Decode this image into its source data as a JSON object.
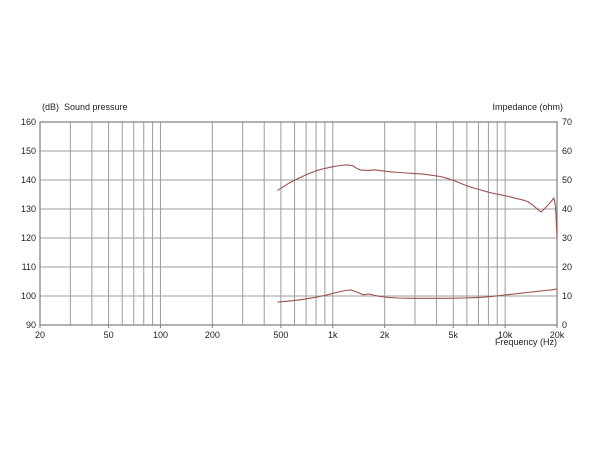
{
  "figure": {
    "background": "#ffffff"
  },
  "chart_data": {
    "type": "line",
    "title": "",
    "colors": {
      "grid": "#9c9c9c",
      "border": "#7d7d7d",
      "text": "#222222",
      "curve": "#9a544e"
    },
    "x_axis": {
      "title": "Frequency (Hz)",
      "scale": "log",
      "min": 20,
      "max": 20000,
      "tick_values": [
        20,
        50,
        100,
        200,
        500,
        1000,
        2000,
        5000,
        10000,
        20000
      ],
      "tick_labels": [
        "20",
        "50",
        "100",
        "200",
        "500",
        "1k",
        "2k",
        "5k",
        "10k",
        "20k"
      ]
    },
    "left_axis": {
      "title": "(dB)  Sound pressure",
      "min": 90,
      "max": 160,
      "ticks": [
        160,
        150,
        140,
        130,
        120,
        110,
        100,
        90
      ]
    },
    "right_axis": {
      "title": "Impedance (ohm)",
      "min": 0,
      "max": 70,
      "ticks": [
        70,
        60,
        50,
        40,
        30,
        20,
        10,
        0
      ]
    },
    "grid": true,
    "legend": "none",
    "series": [
      {
        "name": "sound-pressure-curve",
        "axis": "left",
        "unit": "dB",
        "points": [
          [
            480,
            136.5
          ],
          [
            520,
            137.8
          ],
          [
            560,
            139.0
          ],
          [
            620,
            140.3
          ],
          [
            700,
            141.8
          ],
          [
            800,
            143.2
          ],
          [
            900,
            144.0
          ],
          [
            1000,
            144.6
          ],
          [
            1100,
            145.0
          ],
          [
            1200,
            145.2
          ],
          [
            1300,
            145.0
          ],
          [
            1380,
            144.0
          ],
          [
            1450,
            143.4
          ],
          [
            1600,
            143.3
          ],
          [
            1750,
            143.5
          ],
          [
            1900,
            143.2
          ],
          [
            2100,
            142.9
          ],
          [
            2400,
            142.6
          ],
          [
            2700,
            142.4
          ],
          [
            3000,
            142.2
          ],
          [
            3400,
            142.0
          ],
          [
            3800,
            141.6
          ],
          [
            4200,
            141.2
          ],
          [
            4600,
            140.6
          ],
          [
            5000,
            139.9
          ],
          [
            5500,
            138.9
          ],
          [
            6000,
            138.0
          ],
          [
            6600,
            137.2
          ],
          [
            7200,
            136.6
          ],
          [
            8000,
            135.8
          ],
          [
            8800,
            135.2
          ],
          [
            9600,
            134.8
          ],
          [
            10500,
            134.3
          ],
          [
            11500,
            133.7
          ],
          [
            12500,
            133.2
          ],
          [
            13500,
            132.6
          ],
          [
            14500,
            131.3
          ],
          [
            15500,
            129.8
          ],
          [
            16200,
            129.0
          ],
          [
            17000,
            130.2
          ],
          [
            17800,
            131.5
          ],
          [
            18600,
            132.8
          ],
          [
            19200,
            133.8
          ],
          [
            19600,
            131.0
          ],
          [
            20000,
            120.5
          ]
        ]
      },
      {
        "name": "impedance-curve",
        "axis": "right",
        "unit": "ohm",
        "points": [
          [
            480,
            7.9
          ],
          [
            550,
            8.2
          ],
          [
            630,
            8.6
          ],
          [
            720,
            9.1
          ],
          [
            820,
            9.7
          ],
          [
            930,
            10.4
          ],
          [
            1050,
            11.2
          ],
          [
            1180,
            11.9
          ],
          [
            1280,
            12.1
          ],
          [
            1400,
            11.2
          ],
          [
            1500,
            10.4
          ],
          [
            1620,
            10.7
          ],
          [
            1750,
            10.2
          ],
          [
            1900,
            9.8
          ],
          [
            2100,
            9.5
          ],
          [
            2400,
            9.3
          ],
          [
            2800,
            9.2
          ],
          [
            3300,
            9.2
          ],
          [
            4000,
            9.2
          ],
          [
            4800,
            9.2
          ],
          [
            5600,
            9.3
          ],
          [
            6500,
            9.4
          ],
          [
            7500,
            9.6
          ],
          [
            8500,
            9.9
          ],
          [
            9500,
            10.2
          ],
          [
            10500,
            10.5
          ],
          [
            12000,
            10.9
          ],
          [
            13500,
            11.2
          ],
          [
            15000,
            11.5
          ],
          [
            17000,
            11.9
          ],
          [
            18500,
            12.1
          ],
          [
            20000,
            12.4
          ]
        ]
      }
    ]
  }
}
